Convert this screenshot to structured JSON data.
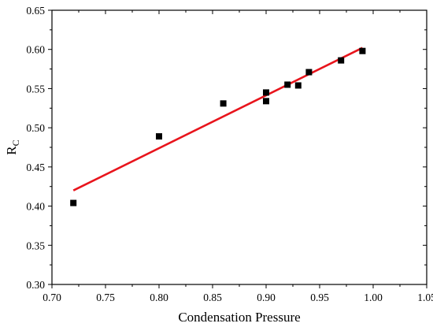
{
  "chart_data": {
    "type": "scatter",
    "title": "",
    "xlabel": "Condensation Pressure",
    "ylabel": {
      "main": "R",
      "sub": "C"
    },
    "xlim": [
      0.7,
      1.05
    ],
    "ylim": [
      0.3,
      0.65
    ],
    "xticks": [
      0.7,
      0.75,
      0.8,
      0.85,
      0.9,
      0.95,
      1.0,
      1.05
    ],
    "yticks": [
      0.3,
      0.35,
      0.4,
      0.45,
      0.5,
      0.55,
      0.6,
      0.65
    ],
    "xtick_labels": [
      "0.70",
      "0.75",
      "0.80",
      "0.85",
      "0.90",
      "0.95",
      "1.00",
      "1.05"
    ],
    "ytick_labels": [
      "0.30",
      "0.35",
      "0.40",
      "0.45",
      "0.50",
      "0.55",
      "0.60",
      "0.65"
    ],
    "grid": false,
    "legend": "none",
    "points": [
      {
        "x": 0.72,
        "y": 0.404
      },
      {
        "x": 0.8,
        "y": 0.489
      },
      {
        "x": 0.86,
        "y": 0.531
      },
      {
        "x": 0.9,
        "y": 0.545
      },
      {
        "x": 0.9,
        "y": 0.534
      },
      {
        "x": 0.92,
        "y": 0.555
      },
      {
        "x": 0.93,
        "y": 0.554
      },
      {
        "x": 0.94,
        "y": 0.571
      },
      {
        "x": 0.97,
        "y": 0.586
      },
      {
        "x": 0.99,
        "y": 0.598
      }
    ],
    "fit_line": {
      "x": [
        0.72,
        0.99
      ],
      "y": [
        0.42,
        0.602
      ]
    },
    "colors": {
      "points": "#000000",
      "fit_line": "#e8141c",
      "axes": "#000000"
    }
  }
}
